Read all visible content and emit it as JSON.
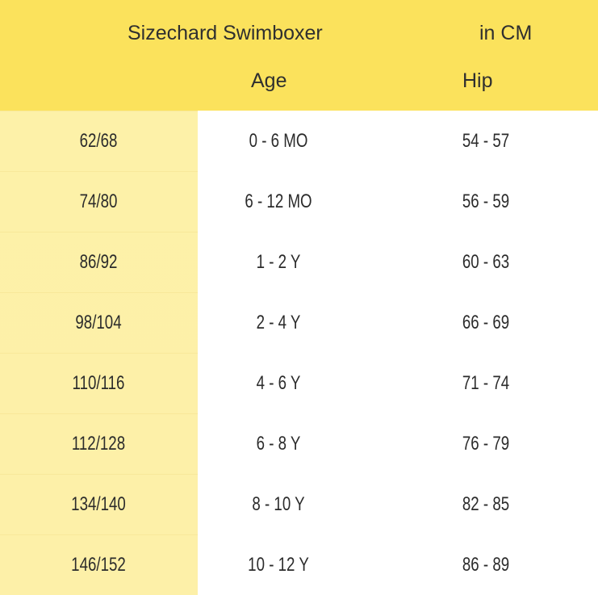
{
  "header": {
    "title": "Sizechard Swimboxer",
    "unit": "in CM",
    "columns": [
      "",
      "Age",
      "Hip"
    ]
  },
  "colors": {
    "header": "#fbe25c",
    "size_column": "#fdf0a8",
    "background": "#ffffff"
  },
  "rows": [
    {
      "size": "62/68",
      "age": "0 - 6 MO",
      "hip": "54 - 57"
    },
    {
      "size": "74/80",
      "age": "6 - 12 MO",
      "hip": "56 - 59"
    },
    {
      "size": "86/92",
      "age": "1 - 2 Y",
      "hip": "60 - 63"
    },
    {
      "size": "98/104",
      "age": "2 - 4 Y",
      "hip": "66 - 69"
    },
    {
      "size": "110/116",
      "age": "4 - 6 Y",
      "hip": "71 - 74"
    },
    {
      "size": "112/128",
      "age": "6 - 8 Y",
      "hip": "76 - 79"
    },
    {
      "size": "134/140",
      "age": "8 - 10 Y",
      "hip": "82 - 85"
    },
    {
      "size": "146/152",
      "age": "10 - 12 Y",
      "hip": "86 - 89"
    }
  ]
}
